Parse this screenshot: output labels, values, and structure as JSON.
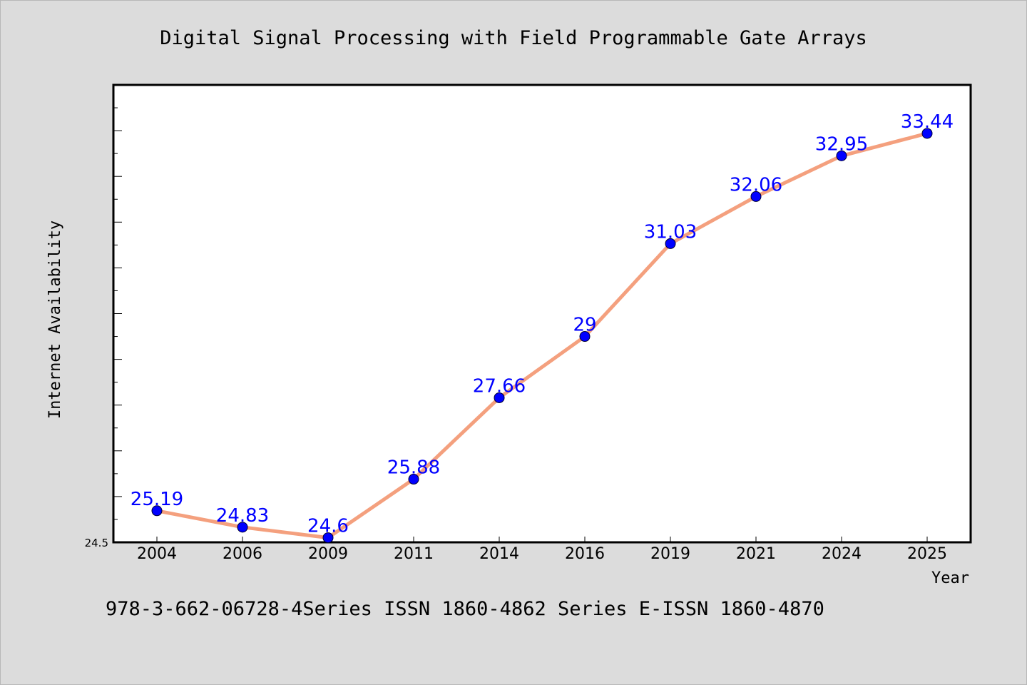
{
  "chart_data": {
    "type": "line",
    "title": "Digital Signal Processing with Field Programmable Gate Arrays",
    "xlabel": "Year",
    "ylabel": "Internet Availability",
    "categories": [
      "2004",
      "2006",
      "2009",
      "2011",
      "2014",
      "2016",
      "2019",
      "2021",
      "2024",
      "2025"
    ],
    "values": [
      25.19,
      24.83,
      24.6,
      25.88,
      27.66,
      29,
      31.03,
      32.06,
      32.95,
      33.44
    ],
    "data_labels": [
      "25.19",
      "24.83",
      "24.6",
      "25.88",
      "27.66",
      "29",
      "31.03",
      "32.06",
      "32.95",
      "33.44"
    ],
    "ylim": [
      24.5,
      34.5
    ],
    "ytick_labels": [
      "24.5"
    ],
    "grid": false,
    "colors": {
      "line": "#f4a07e",
      "marker": "#0000ff",
      "label": "#0000ff",
      "background": "#dcdcdc",
      "plot_area": "#ffffff"
    }
  },
  "footer": "978-3-662-06728-4Series ISSN 1860-4862 Series E-ISSN 1860-4870"
}
